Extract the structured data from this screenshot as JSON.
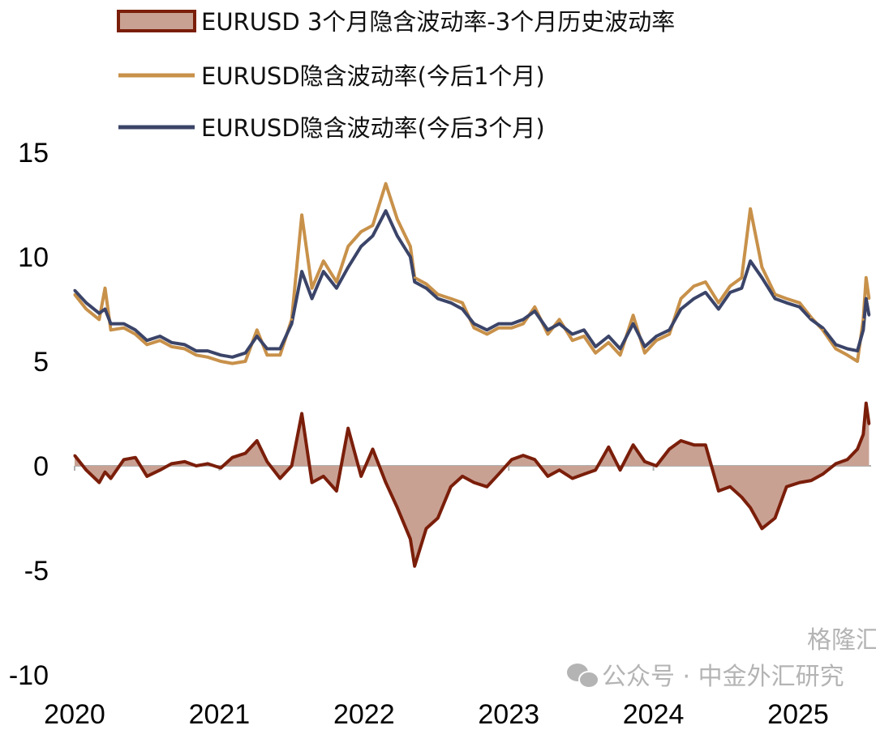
{
  "colors": {
    "vol1m": "#c8914a",
    "vol3m": "#3b4468",
    "spread_line": "#7a1e0a",
    "spread_fill": "#c9a193",
    "zero_line": "#b0b0b0"
  },
  "watermark": {
    "text": "公众号 · 中金外汇研究",
    "brand": "格隆汇",
    "icon": "wechat-icon"
  },
  "chart_data": {
    "type": "line",
    "title": "",
    "legend_position": "top",
    "legend": [
      "EURUSD 3个月隐含波动率-3个月历史波动率",
      "EURUSD隐含波动率(今后1个月)",
      "EURUSD隐含波动率(今后3个月)"
    ],
    "xlabel": "",
    "ylabel": "",
    "xlim": [
      2020,
      2025.5
    ],
    "ylim": [
      -10,
      15
    ],
    "x_ticks": [
      "2020",
      "2021",
      "2022",
      "2023",
      "2024",
      "2025"
    ],
    "y_ticks": [
      "15",
      "10",
      "5",
      "0",
      "-5",
      "-10"
    ],
    "grid": false,
    "x": [
      2020.0,
      2020.08,
      2020.17,
      2020.21,
      2020.25,
      2020.34,
      2020.42,
      2020.5,
      2020.59,
      2020.67,
      2020.76,
      2020.84,
      2020.92,
      2021.01,
      2021.09,
      2021.18,
      2021.26,
      2021.33,
      2021.42,
      2021.5,
      2021.57,
      2021.64,
      2021.72,
      2021.81,
      2021.89,
      2021.98,
      2022.06,
      2022.15,
      2022.23,
      2022.32,
      2022.35,
      2022.43,
      2022.51,
      2022.6,
      2022.68,
      2022.76,
      2022.85,
      2022.93,
      2023.02,
      2023.1,
      2023.18,
      2023.27,
      2023.35,
      2023.44,
      2023.52,
      2023.6,
      2023.69,
      2023.77,
      2023.86,
      2023.94,
      2024.02,
      2024.11,
      2024.19,
      2024.28,
      2024.36,
      2024.45,
      2024.53,
      2024.61,
      2024.67,
      2024.75,
      2024.84,
      2024.92,
      2025.01,
      2025.09,
      2025.17,
      2025.26,
      2025.34,
      2025.41,
      2025.45,
      2025.47,
      2025.49
    ],
    "series": [
      {
        "name": "EURUSD 3个月隐含波动率-3个月历史波动率",
        "kind": "area",
        "values": [
          0.5,
          -0.2,
          -0.8,
          -0.3,
          -0.6,
          0.3,
          0.4,
          -0.5,
          -0.2,
          0.1,
          0.2,
          0.0,
          0.1,
          -0.1,
          0.4,
          0.6,
          1.2,
          0.2,
          -0.6,
          0.0,
          2.5,
          -0.8,
          -0.5,
          -1.2,
          1.8,
          -0.5,
          0.8,
          -0.8,
          -2.0,
          -3.5,
          -4.8,
          -3.0,
          -2.5,
          -1.0,
          -0.5,
          -0.8,
          -1.0,
          -0.4,
          0.3,
          0.5,
          0.3,
          -0.5,
          -0.2,
          -0.6,
          -0.4,
          -0.2,
          0.9,
          -0.2,
          1.0,
          0.2,
          0.0,
          0.8,
          1.2,
          1.0,
          1.0,
          -1.2,
          -1.0,
          -1.5,
          -2.0,
          -3.0,
          -2.5,
          -1.0,
          -0.8,
          -0.7,
          -0.4,
          0.1,
          0.3,
          0.8,
          1.5,
          3.0,
          2.0
        ]
      },
      {
        "name": "EURUSD隐含波动率(今后1个月)",
        "kind": "line",
        "values": [
          8.2,
          7.5,
          7.0,
          8.5,
          6.5,
          6.6,
          6.3,
          5.8,
          6.0,
          5.7,
          5.6,
          5.3,
          5.2,
          5.0,
          4.9,
          5.0,
          6.5,
          5.3,
          5.3,
          7.0,
          12.0,
          8.5,
          9.8,
          8.8,
          10.5,
          11.2,
          11.5,
          13.5,
          11.8,
          10.5,
          9.0,
          8.7,
          8.2,
          8.0,
          7.8,
          6.6,
          6.3,
          6.6,
          6.6,
          6.8,
          7.6,
          6.3,
          7.0,
          6.0,
          6.2,
          5.4,
          5.9,
          5.3,
          7.2,
          5.4,
          6.0,
          6.3,
          8.0,
          8.6,
          8.8,
          7.8,
          8.6,
          9.0,
          12.3,
          9.5,
          8.2,
          8.0,
          7.8,
          7.1,
          6.5,
          5.6,
          5.3,
          5.0,
          7.0,
          9.0,
          8.0
        ]
      },
      {
        "name": "EURUSD隐含波动率(今后3个月)",
        "kind": "line",
        "values": [
          8.4,
          7.8,
          7.3,
          7.5,
          6.8,
          6.8,
          6.5,
          6.0,
          6.2,
          5.9,
          5.8,
          5.5,
          5.5,
          5.3,
          5.2,
          5.4,
          6.2,
          5.6,
          5.6,
          6.8,
          9.3,
          8.0,
          9.3,
          8.5,
          9.5,
          10.5,
          11.0,
          12.2,
          11.0,
          10.0,
          8.8,
          8.5,
          8.0,
          7.8,
          7.5,
          6.8,
          6.5,
          6.8,
          6.8,
          7.0,
          7.4,
          6.5,
          6.8,
          6.3,
          6.5,
          5.7,
          6.2,
          5.6,
          6.8,
          5.7,
          6.2,
          6.5,
          7.5,
          8.0,
          8.3,
          7.5,
          8.3,
          8.5,
          9.8,
          9.0,
          8.0,
          7.8,
          7.6,
          7.0,
          6.6,
          5.8,
          5.6,
          5.5,
          6.5,
          8.0,
          7.2
        ]
      }
    ]
  }
}
